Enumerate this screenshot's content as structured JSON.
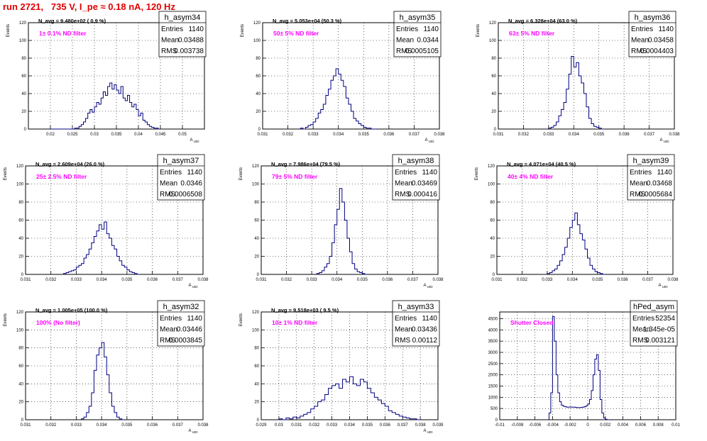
{
  "canvas_title": "run 2721,   735 V, I_pe ≈ 0.18 nA, 120 Hz",
  "colors": {
    "histogram": "#000080",
    "filter_label": "#ff00ff",
    "title": "#e00000",
    "grid": "#000000"
  },
  "chart_data": [
    {
      "type": "histogram",
      "name": "h_asym34",
      "stats": {
        "entries_label": "Entries",
        "entries": "1140",
        "mean_label": "Mean",
        "mean": "0.03488",
        "rms_label": "RMS",
        "rms": "0.003738"
      },
      "navg": "N_avg = 9.480e+02 ( 0.9 %)",
      "filter": "1± 0.1% ND filter",
      "ylabel": "Events",
      "xlabel": "A_UID",
      "xlim": [
        0.015,
        0.055
      ],
      "ylim": [
        0,
        120
      ],
      "xticks": [
        "0.02",
        "0.025",
        "0.03",
        "0.035",
        "0.04",
        "0.045",
        "0.05"
      ],
      "xtick_values": [
        0.02,
        0.025,
        0.03,
        0.035,
        0.04,
        0.045,
        0.05
      ],
      "yticks": [
        0,
        20,
        40,
        60,
        80,
        100,
        120
      ],
      "hist": {
        "start": 0.02,
        "width": 0.0005,
        "counts": [
          0,
          0,
          0,
          0,
          0,
          0,
          0,
          0,
          0,
          0,
          0,
          1,
          1,
          3,
          5,
          8,
          12,
          18,
          22,
          19,
          25,
          30,
          28,
          35,
          42,
          38,
          48,
          52,
          45,
          50,
          44,
          40,
          48,
          35,
          32,
          38,
          30,
          25,
          28,
          22,
          15,
          18,
          10,
          8,
          5,
          3,
          2,
          1,
          1,
          0
        ]
      }
    },
    {
      "type": "histogram",
      "name": "h_asym35",
      "stats": {
        "entries_label": "Entries",
        "entries": "1140",
        "mean_label": "Mean",
        "mean": "0.0344",
        "rms_label": "RMS",
        "rms": "0.0005105"
      },
      "navg": "N_avg = 5.053e+04 (50.3 %)",
      "filter": "50± 5% ND filter",
      "ylabel": "Events",
      "xlabel": "A_UID",
      "xlim": [
        0.031,
        0.038
      ],
      "ylim": [
        0,
        120
      ],
      "xticks": [
        "0.031",
        "0.032",
        "0.033",
        "0.034",
        "0.035",
        "0.036",
        "0.037",
        "0.038"
      ],
      "xtick_values": [
        0.031,
        0.032,
        0.033,
        0.034,
        0.035,
        0.036,
        0.037,
        0.038
      ],
      "yticks": [
        0,
        20,
        40,
        60,
        80,
        100,
        120
      ],
      "hist": {
        "start": 0.0325,
        "width": 0.0001,
        "counts": [
          1,
          0,
          2,
          4,
          5,
          8,
          12,
          18,
          22,
          28,
          38,
          45,
          55,
          60,
          68,
          62,
          55,
          48,
          35,
          28,
          20,
          12,
          9,
          6,
          4,
          2,
          1,
          1,
          0,
          0
        ]
      }
    },
    {
      "type": "histogram",
      "name": "h_asym36",
      "stats": {
        "entries_label": "Entries",
        "entries": "1140",
        "mean_label": "Mean",
        "mean": "0.03458",
        "rms_label": "RMS",
        "rms": "0.0004403"
      },
      "navg": "N_avg = 6.328e+04 (63.0 %)",
      "filter": "63± 5% ND filter",
      "ylabel": "Events",
      "xlabel": "A_UID",
      "xlim": [
        0.031,
        0.038
      ],
      "ylim": [
        0,
        120
      ],
      "xticks": [
        "0.031",
        "0.032",
        "0.033",
        "0.034",
        "0.035",
        "0.036",
        "0.037",
        "0.038"
      ],
      "xtick_values": [
        0.031,
        0.032,
        0.033,
        0.034,
        0.035,
        0.036,
        0.037,
        0.038
      ],
      "yticks": [
        0,
        20,
        40,
        60,
        80,
        100,
        120
      ],
      "hist": {
        "start": 0.033,
        "width": 0.0001,
        "counts": [
          1,
          2,
          4,
          8,
          15,
          22,
          30,
          45,
          62,
          82,
          70,
          75,
          60,
          52,
          40,
          25,
          12,
          6,
          3,
          2,
          1,
          0
        ]
      }
    },
    {
      "type": "histogram",
      "name": "h_asym37",
      "stats": {
        "entries_label": "Entries",
        "entries": "1140",
        "mean_label": "Mean",
        "mean": "0.0346",
        "rms_label": "RMS",
        "rms": "0.0006508"
      },
      "navg": "N_avg = 2.609e+04 (26.0 %)",
      "filter": "25± 2.5% ND filter",
      "ylabel": "Events",
      "xlabel": "A_UID",
      "xlim": [
        0.031,
        0.038
      ],
      "ylim": [
        0,
        120
      ],
      "xticks": [
        "0.031",
        "0.032",
        "0.033",
        "0.034",
        "0.035",
        "0.036",
        "0.037",
        "0.038"
      ],
      "xtick_values": [
        0.031,
        0.032,
        0.033,
        0.034,
        0.035,
        0.036,
        0.037,
        0.038
      ],
      "yticks": [
        0,
        20,
        40,
        60,
        80,
        100,
        120
      ],
      "hist": {
        "start": 0.0325,
        "width": 0.0001,
        "counts": [
          1,
          2,
          3,
          4,
          5,
          8,
          10,
          12,
          18,
          22,
          28,
          35,
          42,
          48,
          55,
          50,
          58,
          45,
          40,
          32,
          28,
          20,
          15,
          10,
          8,
          5,
          3,
          2,
          1,
          0
        ]
      }
    },
    {
      "type": "histogram",
      "name": "h_asym38",
      "stats": {
        "entries_label": "Entries",
        "entries": "1140",
        "mean_label": "Mean",
        "mean": "0.03469",
        "rms_label": "RMS",
        "rms": "0.000416"
      },
      "navg": "N_avg = 7.986e+04 (79.5 %)",
      "filter": "79± 5% ND filter",
      "ylabel": "Events",
      "xlabel": "A_UID",
      "xlim": [
        0.031,
        0.038
      ],
      "ylim": [
        0,
        120
      ],
      "xticks": [
        "0.031",
        "0.032",
        "0.033",
        "0.034",
        "0.035",
        "0.036",
        "0.037",
        "0.038"
      ],
      "xtick_values": [
        0.031,
        0.032,
        0.033,
        0.034,
        0.035,
        0.036,
        0.037,
        0.038
      ],
      "yticks": [
        0,
        20,
        40,
        60,
        80,
        100,
        120
      ],
      "hist": {
        "start": 0.0332,
        "width": 0.0001,
        "counts": [
          1,
          2,
          4,
          8,
          12,
          20,
          35,
          55,
          72,
          95,
          80,
          60,
          40,
          25,
          12,
          6,
          3,
          2,
          1,
          0
        ]
      }
    },
    {
      "type": "histogram",
      "name": "h_asym39",
      "stats": {
        "entries_label": "Entries",
        "entries": "1140",
        "mean_label": "Mean",
        "mean": "0.03468",
        "rms_label": "RMS",
        "rms": "0.0005684"
      },
      "navg": "N_avg = 4.071e+04 (40.5 %)",
      "filter": "40± 4% ND filter",
      "ylabel": "Events",
      "xlabel": "A_UID",
      "xlim": [
        0.031,
        0.038
      ],
      "ylim": [
        0,
        120
      ],
      "xticks": [
        "0.031",
        "0.032",
        "0.033",
        "0.034",
        "0.035",
        "0.036",
        "0.037",
        "0.038"
      ],
      "xtick_values": [
        0.031,
        0.032,
        0.033,
        0.034,
        0.035,
        0.036,
        0.037,
        0.038
      ],
      "yticks": [
        0,
        20,
        40,
        60,
        80,
        100,
        120
      ],
      "hist": {
        "start": 0.033,
        "width": 0.0001,
        "counts": [
          1,
          2,
          4,
          6,
          10,
          15,
          22,
          30,
          40,
          52,
          60,
          68,
          55,
          45,
          38,
          28,
          18,
          10,
          6,
          3,
          2,
          1,
          0
        ]
      }
    },
    {
      "type": "histogram",
      "name": "h_asym32",
      "stats": {
        "entries_label": "Entries",
        "entries": "1140",
        "mean_label": "Mean",
        "mean": "0.03446",
        "rms_label": "RMS",
        "rms": "0.0003845"
      },
      "navg": "N_avg = 1.005e+05 (100.0 %)",
      "filter": "100% (No filter)",
      "ylabel": "Events",
      "xlabel": "A_UID",
      "xlim": [
        0.031,
        0.038
      ],
      "ylim": [
        0,
        120
      ],
      "xticks": [
        "0.031",
        "0.032",
        "0.033",
        "0.034",
        "0.035",
        "0.036",
        "0.037",
        "0.038"
      ],
      "xtick_values": [
        0.031,
        0.032,
        0.033,
        0.034,
        0.035,
        0.036,
        0.037,
        0.038
      ],
      "yticks": [
        0,
        20,
        40,
        60,
        80,
        100,
        120
      ],
      "hist": {
        "start": 0.0332,
        "width": 0.0001,
        "counts": [
          1,
          3,
          8,
          15,
          30,
          55,
          72,
          80,
          86,
          70,
          50,
          30,
          15,
          8,
          3,
          1,
          0
        ]
      }
    },
    {
      "type": "histogram",
      "name": "h_asym33",
      "stats": {
        "entries_label": "Entries",
        "entries": "1140",
        "mean_label": "Mean",
        "mean": "0.03436",
        "rms_label": "RMS",
        "rms": "0.00112"
      },
      "navg": "N_avg = 9.518e+03 ( 9.5 %)",
      "filter": "10± 1% ND filter",
      "ylabel": "Events",
      "xlabel": "A_UID",
      "xlim": [
        0.029,
        0.039
      ],
      "ylim": [
        0,
        120
      ],
      "xticks": [
        "0.029",
        "0.03",
        "0.031",
        "0.032",
        "0.033",
        "0.034",
        "0.035",
        "0.036",
        "0.037",
        "0.038",
        "0.039"
      ],
      "xtick_values": [
        0.029,
        0.03,
        0.031,
        0.032,
        0.033,
        0.034,
        0.035,
        0.036,
        0.037,
        0.038,
        0.039
      ],
      "yticks": [
        0,
        20,
        40,
        60,
        80,
        100,
        120
      ],
      "hist": {
        "start": 0.03,
        "width": 0.0002,
        "counts": [
          1,
          0,
          2,
          1,
          3,
          2,
          4,
          6,
          8,
          12,
          15,
          20,
          22,
          28,
          35,
          38,
          40,
          35,
          45,
          42,
          48,
          40,
          38,
          45,
          42,
          35,
          30,
          25,
          22,
          18,
          15,
          10,
          8,
          6,
          4,
          3,
          2,
          1,
          1,
          0
        ]
      }
    },
    {
      "type": "histogram",
      "name": "hPed_asym",
      "stats": {
        "entries_label": "Entries",
        "entries": "52354",
        "mean_label": "Mean",
        "mean": "1.345e-05",
        "rms_label": "RMS",
        "rms": "0.003121"
      },
      "navg": "",
      "filter": "Shutter Closed",
      "ylabel": "",
      "xlabel": "",
      "xlim": [
        -0.01,
        0.01
      ],
      "ylim": [
        0,
        4800
      ],
      "xticks": [
        "-0.01",
        "-0.008",
        "-0.006",
        "-0.004",
        "-0.002",
        "0",
        "0.002",
        "0.004",
        "0.006",
        "0.008",
        "0.01"
      ],
      "xtick_values": [
        -0.01,
        -0.008,
        -0.006,
        -0.004,
        -0.002,
        0,
        0.002,
        0.004,
        0.006,
        0.008,
        0.01
      ],
      "yticks": [
        0,
        500,
        1000,
        1500,
        2000,
        2500,
        3000,
        3500,
        4000,
        4500
      ],
      "hist": {
        "start": -0.0044,
        "width": 0.0002,
        "counts": [
          300,
          1200,
          4600,
          3500,
          2000,
          1200,
          800,
          650,
          600,
          580,
          560,
          560,
          570,
          560,
          560,
          550,
          540,
          540,
          550,
          560,
          580,
          620,
          700,
          900,
          1300,
          2000,
          2700,
          2900,
          2200,
          900,
          300,
          80,
          20,
          0
        ]
      }
    }
  ]
}
